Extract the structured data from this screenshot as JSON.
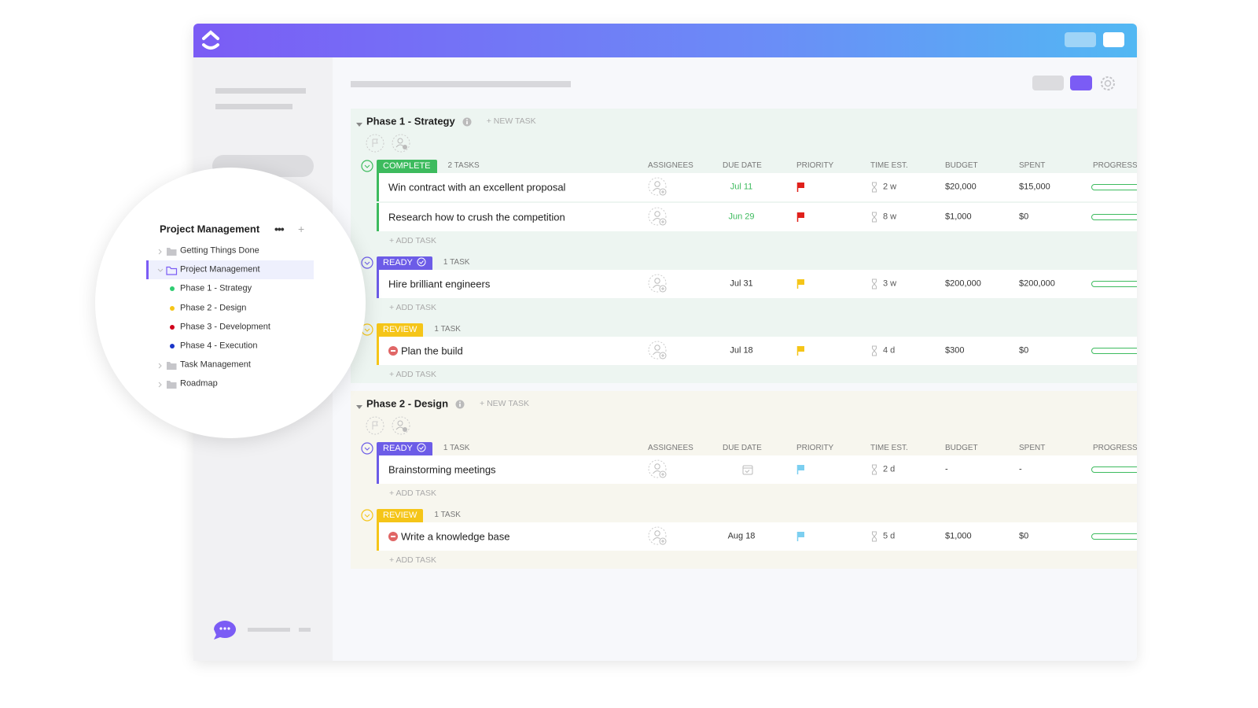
{
  "sidebar": {
    "title": "Project Management",
    "items": [
      {
        "label": "Getting Things Done",
        "level": 0
      },
      {
        "label": "Project Management",
        "level": 0,
        "selected": true
      },
      {
        "label": "Phase 1 - Strategy",
        "level": 1,
        "color": "#2ecc71"
      },
      {
        "label": "Phase 2 - Design",
        "level": 1,
        "color": "#f5c518"
      },
      {
        "label": "Phase 3 - Development",
        "level": 1,
        "color": "#d0021b"
      },
      {
        "label": "Phase 4 - Execution",
        "level": 1,
        "color": "#1a35c9"
      },
      {
        "label": "Task Management",
        "level": 0
      },
      {
        "label": "Roadmap",
        "level": 0
      }
    ]
  },
  "new_task": "+ NEW TASK",
  "add_task": "+ ADD TASK",
  "columns": [
    "ASSIGNEES",
    "DUE DATE",
    "PRIORITY",
    "TIME EST.",
    "BUDGET",
    "SPENT",
    "PROGRESS"
  ],
  "phases": [
    {
      "title": "Phase 1 - Strategy",
      "background": "#edf5f1",
      "groups": [
        {
          "status": "COMPLETE",
          "color": "#3dbb5e",
          "count": "2 TASKS",
          "tasks": [
            {
              "name": "Win contract with an excellent proposal",
              "due": "Jul 11",
              "due_color": "#3dbb5e",
              "flag": "#e0201b",
              "time": "2 w",
              "budget": "$20,000",
              "spent": "$15,000"
            },
            {
              "name": "Research how to crush the competition",
              "due": "Jun 29",
              "due_color": "#3dbb5e",
              "flag": "#e0201b",
              "time": "8 w",
              "budget": "$1,000",
              "spent": "$0"
            }
          ]
        },
        {
          "status": "READY",
          "color": "#6c5ce7",
          "count": "1 TASK",
          "tasks": [
            {
              "name": "Hire brilliant engineers",
              "due": "Jul 31",
              "flag": "#f5c518",
              "time": "3 w",
              "budget": "$200,000",
              "spent": "$200,000"
            }
          ]
        },
        {
          "status": "REVIEW",
          "color": "#f5c518",
          "count": "1 TASK",
          "tasks": [
            {
              "name": "Plan the build",
              "blocked": true,
              "due": "Jul 18",
              "flag": "#f5c518",
              "time": "4 d",
              "budget": "$300",
              "spent": "$0"
            }
          ]
        }
      ]
    },
    {
      "title": "Phase 2 - Design",
      "background": "#f7f6ee",
      "groups": [
        {
          "status": "READY",
          "color": "#6c5ce7",
          "count": "1 TASK",
          "tasks": [
            {
              "name": "Brainstorming meetings",
              "due": null,
              "flag": "#7ccff0",
              "time": "2 d",
              "budget": "-",
              "spent": "-"
            }
          ]
        },
        {
          "status": "REVIEW",
          "color": "#f5c518",
          "count": "1 TASK",
          "tasks": [
            {
              "name": "Write a knowledge base",
              "blocked": true,
              "due": "Aug 18",
              "flag": "#7ccff0",
              "time": "5 d",
              "budget": "$1,000",
              "spent": "$0"
            }
          ]
        }
      ]
    }
  ]
}
